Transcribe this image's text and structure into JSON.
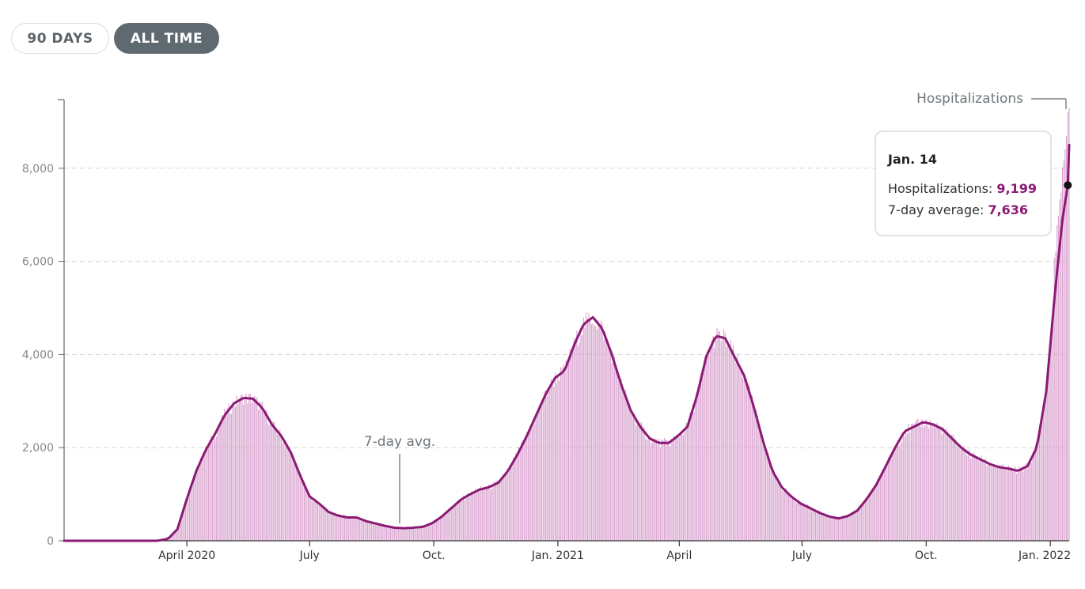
{
  "controls": {
    "range_90": "90 DAYS",
    "range_all": "ALL TIME",
    "active": "ALL TIME"
  },
  "tooltip": {
    "date": "Jan. 14",
    "hosp_label": "Hospitalizations: ",
    "hosp_value": "9,199",
    "avg_label": "7-day average: ",
    "avg_value": "7,636"
  },
  "colors": {
    "bars": "#d9a3cf",
    "line": "#8b1a74",
    "value_text": "#8b1a74",
    "grid": "#d5d5d5",
    "axis": "#666666",
    "label": "#888888"
  },
  "chart_data": {
    "type": "bar",
    "series": [
      {
        "name": "Hospitalizations",
        "kind": "bar",
        "color": "#d9a3cf"
      },
      {
        "name": "7-day avg.",
        "kind": "line",
        "color": "#8b1a74"
      }
    ],
    "x_start": "2020-01-01",
    "x_end": "2022-01-15",
    "ylim": [
      0,
      9500
    ],
    "yticks": [
      0,
      2000,
      4000,
      6000,
      8000
    ],
    "ytick_labels": [
      "0",
      "2,000",
      "4,000",
      "6,000",
      "8,000"
    ],
    "xticks": [
      {
        "date": "2020-04-01",
        "label": "April 2020"
      },
      {
        "date": "2020-07-01",
        "label": "July"
      },
      {
        "date": "2020-10-01",
        "label": "Oct."
      },
      {
        "date": "2021-01-01",
        "label": "Jan. 2021"
      },
      {
        "date": "2021-04-01",
        "label": "April"
      },
      {
        "date": "2021-07-01",
        "label": "July"
      },
      {
        "date": "2021-10-01",
        "label": "Oct."
      },
      {
        "date": "2022-01-01",
        "label": "Jan. 2022"
      }
    ],
    "grid": true,
    "annotations": [
      {
        "text": "Hospitalizations",
        "series": "Hospitalizations",
        "date": "2022-01-15"
      },
      {
        "text": "7-day avg.",
        "series": "7-day avg.",
        "date": "2020-09-20"
      }
    ],
    "highlight": {
      "date": "2022-01-14",
      "hospitalizations": 9199,
      "avg": 7636
    },
    "avg_points": [
      [
        "2020-01-01",
        0
      ],
      [
        "2020-03-10",
        0
      ],
      [
        "2020-03-18",
        40
      ],
      [
        "2020-03-25",
        250
      ],
      [
        "2020-04-01",
        900
      ],
      [
        "2020-04-08",
        1500
      ],
      [
        "2020-04-15",
        1950
      ],
      [
        "2020-04-22",
        2300
      ],
      [
        "2020-04-29",
        2700
      ],
      [
        "2020-05-06",
        2950
      ],
      [
        "2020-05-13",
        3070
      ],
      [
        "2020-05-20",
        3050
      ],
      [
        "2020-05-27",
        2850
      ],
      [
        "2020-06-03",
        2500
      ],
      [
        "2020-06-10",
        2250
      ],
      [
        "2020-06-17",
        1900
      ],
      [
        "2020-06-24",
        1400
      ],
      [
        "2020-07-01",
        950
      ],
      [
        "2020-07-08",
        800
      ],
      [
        "2020-07-15",
        620
      ],
      [
        "2020-07-22",
        540
      ],
      [
        "2020-07-29",
        500
      ],
      [
        "2020-08-05",
        500
      ],
      [
        "2020-08-12",
        420
      ],
      [
        "2020-08-19",
        370
      ],
      [
        "2020-08-26",
        320
      ],
      [
        "2020-09-02",
        280
      ],
      [
        "2020-09-09",
        270
      ],
      [
        "2020-09-16",
        280
      ],
      [
        "2020-09-23",
        300
      ],
      [
        "2020-09-30",
        380
      ],
      [
        "2020-10-07",
        520
      ],
      [
        "2020-10-14",
        700
      ],
      [
        "2020-10-21",
        880
      ],
      [
        "2020-10-28",
        1000
      ],
      [
        "2020-11-04",
        1100
      ],
      [
        "2020-11-11",
        1150
      ],
      [
        "2020-11-18",
        1250
      ],
      [
        "2020-11-25",
        1500
      ],
      [
        "2020-12-02",
        1850
      ],
      [
        "2020-12-09",
        2250
      ],
      [
        "2020-12-16",
        2700
      ],
      [
        "2020-12-23",
        3150
      ],
      [
        "2020-12-30",
        3500
      ],
      [
        "2021-01-06",
        3650
      ],
      [
        "2021-01-13",
        4200
      ],
      [
        "2021-01-20",
        4650
      ],
      [
        "2021-01-27",
        4800
      ],
      [
        "2021-02-03",
        4550
      ],
      [
        "2021-02-10",
        4000
      ],
      [
        "2021-02-17",
        3350
      ],
      [
        "2021-02-24",
        2800
      ],
      [
        "2021-03-03",
        2450
      ],
      [
        "2021-03-10",
        2200
      ],
      [
        "2021-03-17",
        2100
      ],
      [
        "2021-03-24",
        2100
      ],
      [
        "2021-03-31",
        2250
      ],
      [
        "2021-04-07",
        2450
      ],
      [
        "2021-04-14",
        3100
      ],
      [
        "2021-04-21",
        3950
      ],
      [
        "2021-04-28",
        4400
      ],
      [
        "2021-05-05",
        4350
      ],
      [
        "2021-05-12",
        3950
      ],
      [
        "2021-05-19",
        3550
      ],
      [
        "2021-05-26",
        2900
      ],
      [
        "2021-06-02",
        2150
      ],
      [
        "2021-06-09",
        1500
      ],
      [
        "2021-06-16",
        1150
      ],
      [
        "2021-06-23",
        950
      ],
      [
        "2021-06-30",
        800
      ],
      [
        "2021-07-07",
        700
      ],
      [
        "2021-07-14",
        600
      ],
      [
        "2021-07-21",
        520
      ],
      [
        "2021-07-28",
        480
      ],
      [
        "2021-08-04",
        530
      ],
      [
        "2021-08-11",
        650
      ],
      [
        "2021-08-18",
        900
      ],
      [
        "2021-08-25",
        1200
      ],
      [
        "2021-09-01",
        1600
      ],
      [
        "2021-09-08",
        2000
      ],
      [
        "2021-09-15",
        2350
      ],
      [
        "2021-09-22",
        2450
      ],
      [
        "2021-09-29",
        2550
      ],
      [
        "2021-10-06",
        2500
      ],
      [
        "2021-10-13",
        2400
      ],
      [
        "2021-10-20",
        2200
      ],
      [
        "2021-10-27",
        2000
      ],
      [
        "2021-11-03",
        1850
      ],
      [
        "2021-11-10",
        1750
      ],
      [
        "2021-11-17",
        1650
      ],
      [
        "2021-11-24",
        1580
      ],
      [
        "2021-12-01",
        1550
      ],
      [
        "2021-12-08",
        1500
      ],
      [
        "2021-12-15",
        1600
      ],
      [
        "2021-12-22",
        2000
      ],
      [
        "2021-12-29",
        3200
      ],
      [
        "2022-01-05",
        5500
      ],
      [
        "2022-01-10",
        6900
      ],
      [
        "2022-01-14",
        7636
      ],
      [
        "2022-01-15",
        8500
      ]
    ]
  }
}
